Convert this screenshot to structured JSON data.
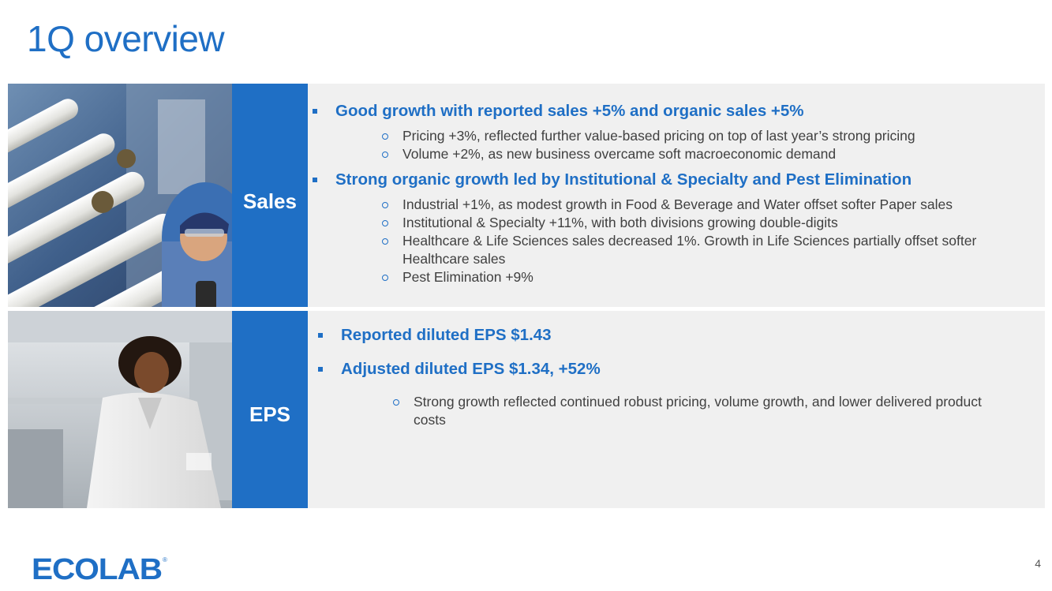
{
  "title": "1Q overview",
  "sales": {
    "label": "Sales",
    "bullets": [
      {
        "text": "Good growth with reported sales +5% and organic sales +5%",
        "subs": [
          "Pricing +3%, reflected further value-based pricing on top of last year’s strong pricing",
          "Volume +2%, as new business overcame soft macroeconomic demand"
        ]
      },
      {
        "text": "Strong organic growth led by Institutional & Specialty and Pest Elimination",
        "subs": [
          "Industrial +1%, as modest growth in Food & Beverage and Water offset softer Paper sales",
          "Institutional & Specialty +11%, with both divisions growing double-digits",
          "Healthcare & Life Sciences sales decreased 1%. Growth in Life Sciences partially offset softer Healthcare sales",
          "Pest Elimination +9%"
        ]
      }
    ]
  },
  "eps": {
    "label": "EPS",
    "bullets": [
      {
        "text": "Reported diluted EPS $1.43",
        "subs": []
      },
      {
        "text": "Adjusted diluted EPS $1.34, +52%",
        "subs": [
          "Strong growth reflected continued robust pricing, volume growth, and lower delivered product costs"
        ]
      }
    ]
  },
  "footer": {
    "logo_text": "ECOLAB",
    "page_number": "4"
  },
  "colors": {
    "brand_blue": "#1f6fc5",
    "panel_bg": "#f0f0f0",
    "body_text": "#404040"
  }
}
